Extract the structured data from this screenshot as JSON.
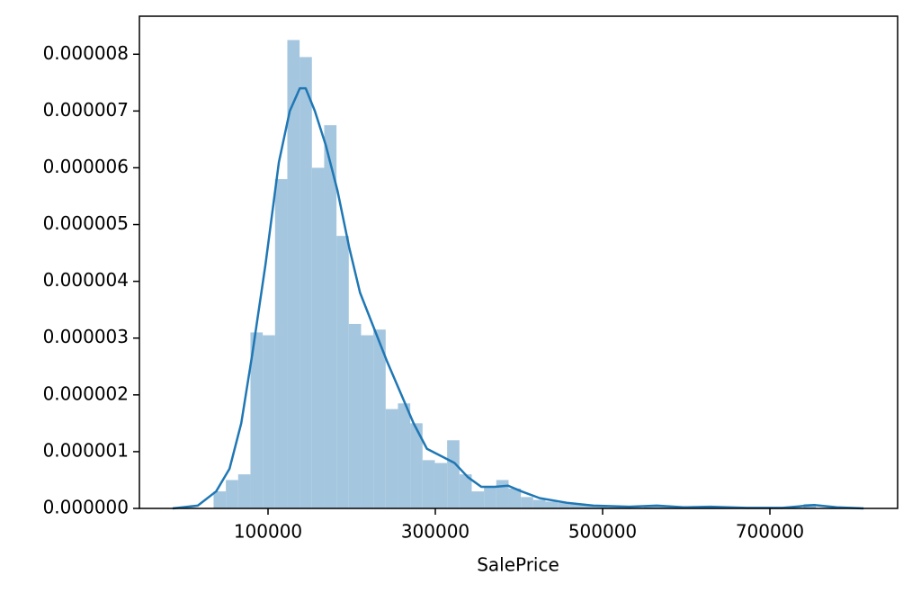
{
  "chart_data": {
    "type": "histogram",
    "xlabel": "SalePrice",
    "bins": [
      34900,
      49596,
      64293,
      78989,
      93685,
      108381,
      123078,
      137774,
      152470,
      167167,
      181863,
      196559,
      211255,
      225952,
      240648,
      255344,
      270041,
      284737,
      299433,
      314129,
      328826,
      343522,
      358218,
      372915,
      387611,
      402307,
      417003,
      431700,
      446396,
      461092,
      475789,
      490485,
      505181,
      519877,
      534574,
      549270,
      563966,
      578663,
      593359,
      608055,
      622751,
      637448,
      652144,
      666840,
      681537,
      696233,
      710929,
      725625,
      740322,
      755000
    ],
    "values": [
      3e-07,
      5e-07,
      6e-07,
      3.1e-06,
      3.05e-06,
      5.8e-06,
      8.25e-06,
      7.95e-06,
      6e-06,
      6.75e-06,
      4.8e-06,
      3.25e-06,
      3.05e-06,
      3.15e-06,
      1.75e-06,
      1.85e-06,
      1.5e-06,
      8.5e-07,
      8e-07,
      1.2e-06,
      6e-07,
      3e-07,
      3.8e-07,
      5e-07,
      3.5e-07,
      2e-07,
      1.5e-07,
      1.2e-07,
      1e-07,
      8e-08,
      6e-08,
      3e-08,
      2e-08,
      2e-08,
      1e-08,
      5e-08,
      5e-08,
      2e-08,
      1e-08,
      2e-08,
      3e-08,
      1e-08,
      0,
      0,
      0,
      0,
      1e-08,
      0,
      8e-08
    ],
    "color": "#a4c6df",
    "kde_x": [
      -14000,
      16000,
      38000,
      54000,
      68000,
      81000,
      97000,
      113000,
      126000,
      138000,
      145000,
      156000,
      169000,
      183000,
      197000,
      210000,
      226000,
      242000,
      258000,
      274000,
      290000,
      306000,
      323000,
      339000,
      355000,
      371000,
      387000,
      403000,
      425000,
      457000,
      489000,
      532000,
      565000,
      597000,
      629000,
      672000,
      715000,
      753000,
      780000,
      812000
    ],
    "kde_y": [
      0,
      5e-08,
      3e-07,
      7e-07,
      1.5e-06,
      2.7e-06,
      4.3e-06,
      6.1e-06,
      7e-06,
      7.4e-06,
      7.4e-06,
      7e-06,
      6.4e-06,
      5.6e-06,
      4.6e-06,
      3.8e-06,
      3.2e-06,
      2.6e-06,
      2.05e-06,
      1.5e-06,
      1.05e-06,
      9.3e-07,
      8e-07,
      5.5e-07,
      3.8e-07,
      3.8e-07,
      4e-07,
      3e-07,
      1.8e-07,
      1e-07,
      5e-08,
      3e-08,
      5e-08,
      2e-08,
      3e-08,
      1e-08,
      1e-08,
      6e-08,
      2e-08,
      0
    ],
    "kde_color": "#1f77b4",
    "xlim": [
      -53763,
      852688
    ],
    "ylim": [
      0,
      8.67e-06
    ],
    "xticks": [
      100000,
      300000,
      500000,
      700000
    ],
    "yticks": [
      {
        "value": 0,
        "label": "0.000000"
      },
      {
        "value": 1e-06,
        "label": "0.000001"
      },
      {
        "value": 2e-06,
        "label": "0.000002"
      },
      {
        "value": 3e-06,
        "label": "0.000003"
      },
      {
        "value": 4e-06,
        "label": "0.000004"
      },
      {
        "value": 5e-06,
        "label": "0.000005"
      },
      {
        "value": 6e-06,
        "label": "0.000006"
      },
      {
        "value": 7e-06,
        "label": "0.000007"
      },
      {
        "value": 8e-06,
        "label": "0.000008"
      }
    ]
  }
}
